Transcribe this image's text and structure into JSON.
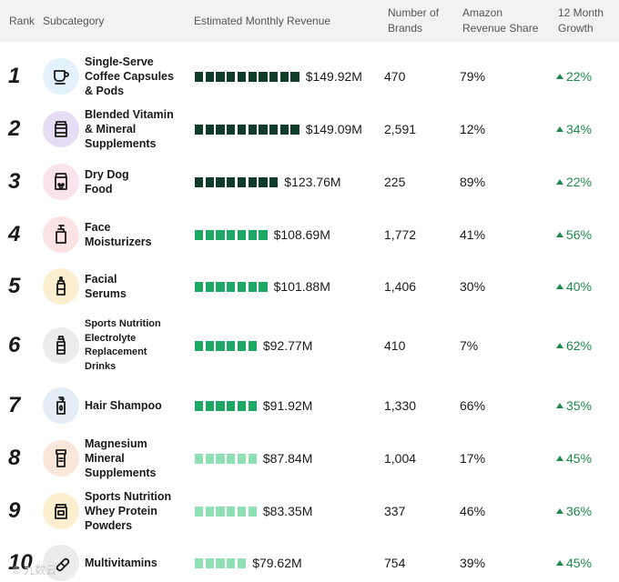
{
  "header": {
    "rank": "Rank",
    "subcategory": "Subcategory",
    "revenue": "Estimated Monthly Revenue",
    "brands_l1": "Number of",
    "brands_l2": "Brands",
    "share_l1": "Amazon",
    "share_l2": "Revenue Share",
    "growth_l1": "12 Month",
    "growth_l2": "Growth"
  },
  "watermark": "© 九数云",
  "chart_data": {
    "type": "table",
    "title": "",
    "columns": [
      "Rank",
      "Subcategory",
      "Estimated Monthly Revenue",
      "Number of Brands",
      "Amazon Revenue Share",
      "12 Month Growth"
    ],
    "units": "USD millions",
    "colors": {
      "bar_dark": "#0f3d2a",
      "bar_mid": "#1ea866",
      "bar_light": "#8fe0b4",
      "growth": "#1f8a4c"
    },
    "rows": [
      {
        "rank": "1",
        "name_lines": [
          "Single-Serve",
          "Coffee Capsules",
          "& Pods"
        ],
        "icon": "coffee-cup-icon",
        "icon_bg": "#e3f1fb",
        "revenue_value": 149.92,
        "revenue": "$149.92M",
        "brands": "470",
        "share": "79%",
        "growth": "22%"
      },
      {
        "rank": "2",
        "name_lines": [
          "Blended  Vitamin",
          "& Mineral",
          "Supplements"
        ],
        "icon": "supplement-jar-icon",
        "icon_bg": "#e6dcf5",
        "revenue_value": 149.09,
        "revenue": "$149.09M",
        "brands": "2,591",
        "share": "12%",
        "growth": "34%"
      },
      {
        "rank": "3",
        "name_lines": [
          "Dry Dog",
          "Food"
        ],
        "icon": "dog-food-bag-icon",
        "icon_bg": "#fbe3ee",
        "revenue_value": 123.76,
        "revenue": "$123.76M",
        "brands": "225",
        "share": "89%",
        "growth": "22%"
      },
      {
        "rank": "4",
        "name_lines": [
          "Face",
          "Moisturizers"
        ],
        "icon": "pump-bottle-icon",
        "icon_bg": "#fbe3e3",
        "revenue_value": 108.69,
        "revenue": "$108.69M",
        "brands": "1,772",
        "share": "41%",
        "growth": "56%"
      },
      {
        "rank": "5",
        "name_lines": [
          "Facial",
          "Serums"
        ],
        "icon": "serum-bottle-icon",
        "icon_bg": "#fcefcf",
        "revenue_value": 101.88,
        "revenue": "$101.88M",
        "brands": "1,406",
        "share": "30%",
        "growth": "40%"
      },
      {
        "rank": "6",
        "name_lines": [
          "Sports Nutrition",
          "Electrolyte",
          "Replacement",
          "Drinks"
        ],
        "icon": "drink-bottle-icon",
        "icon_bg": "#ececec",
        "revenue_value": 92.77,
        "revenue": "$92.77M",
        "brands": "410",
        "share": "7%",
        "growth": "62%"
      },
      {
        "rank": "7",
        "name_lines": [
          "Hair Shampoo"
        ],
        "icon": "shampoo-bottle-icon",
        "icon_bg": "#e4ecf6",
        "revenue_value": 91.92,
        "revenue": "$91.92M",
        "brands": "1,330",
        "share": "66%",
        "growth": "35%"
      },
      {
        "rank": "8",
        "name_lines": [
          "Magnesium",
          "Mineral",
          "Supplements"
        ],
        "icon": "pill-bottle-icon",
        "icon_bg": "#fbe6da",
        "revenue_value": 87.84,
        "revenue": "$87.84M",
        "brands": "1,004",
        "share": "17%",
        "growth": "45%"
      },
      {
        "rank": "9",
        "name_lines": [
          "Sports Nutrition",
          "Whey Protein",
          "Powders"
        ],
        "icon": "protein-tub-icon",
        "icon_bg": "#fcefcf",
        "revenue_value": 83.35,
        "revenue": "$83.35M",
        "brands": "337",
        "share": "46%",
        "growth": "36%"
      },
      {
        "rank": "10",
        "name_lines": [
          "Multivitamins"
        ],
        "icon": "capsule-icon",
        "icon_bg": "#ececec",
        "revenue_value": 79.62,
        "revenue": "$79.62M",
        "brands": "754",
        "share": "39%",
        "growth": "45%"
      }
    ]
  }
}
